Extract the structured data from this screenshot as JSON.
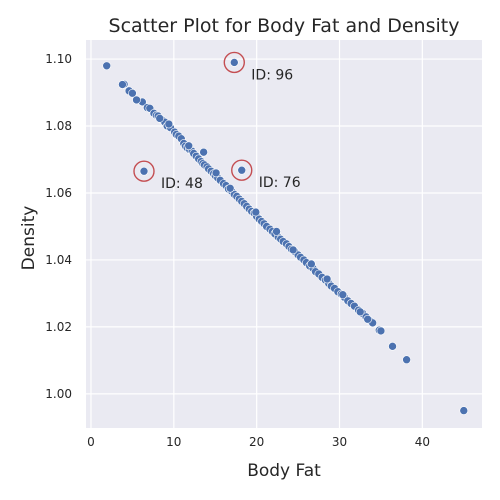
{
  "chart_data": {
    "type": "scatter",
    "title": "Scatter Plot for Body Fat and Density",
    "xlabel": "Body Fat",
    "ylabel": "Density",
    "xlim": [
      -0.6,
      47.2
    ],
    "ylim": [
      0.9898,
      1.1057
    ],
    "xticks": [
      0,
      10,
      20,
      30,
      40
    ],
    "xtick_labels": [
      "0",
      "10",
      "20",
      "30",
      "40"
    ],
    "yticks": [
      1.0,
      1.02,
      1.04,
      1.06,
      1.08,
      1.1
    ],
    "ytick_labels": [
      "1.00",
      "1.02",
      "1.04",
      "1.06",
      "1.08",
      "1.10"
    ],
    "grid": true,
    "colors": {
      "points": "#4c72b0",
      "highlight_ring": "#c44e52",
      "background": "#eaeaf2"
    },
    "points": [
      [
        1.9,
        1.098
      ],
      [
        4.0,
        1.0925
      ],
      [
        4.6,
        1.0905
      ],
      [
        5.0,
        1.0898
      ],
      [
        6.2,
        1.0872
      ],
      [
        6.8,
        1.0855
      ],
      [
        7.1,
        1.0853
      ],
      [
        7.6,
        1.0838
      ],
      [
        7.9,
        1.0832
      ],
      [
        8.1,
        1.083
      ],
      [
        8.5,
        1.082
      ],
      [
        8.9,
        1.0812
      ],
      [
        9.2,
        1.08
      ],
      [
        9.6,
        1.0795
      ],
      [
        10.1,
        1.0782
      ],
      [
        10.3,
        1.0775
      ],
      [
        10.6,
        1.077
      ],
      [
        10.9,
        1.0762
      ],
      [
        11.2,
        1.0748
      ],
      [
        11.4,
        1.074
      ],
      [
        11.6,
        1.0735
      ],
      [
        11.9,
        1.073
      ],
      [
        12.2,
        1.0725
      ],
      [
        12.4,
        1.0718
      ],
      [
        12.7,
        1.071
      ],
      [
        13.0,
        1.0702
      ],
      [
        13.3,
        1.0694
      ],
      [
        13.5,
        1.0688
      ],
      [
        13.7,
        1.0684
      ],
      [
        14.0,
        1.0678
      ],
      [
        14.2,
        1.0672
      ],
      [
        14.5,
        1.0665
      ],
      [
        14.8,
        1.0658
      ],
      [
        15.0,
        1.0652
      ],
      [
        15.3,
        1.0645
      ],
      [
        15.6,
        1.0638
      ],
      [
        16.0,
        1.0628
      ],
      [
        16.3,
        1.0622
      ],
      [
        16.6,
        1.0612
      ],
      [
        17.0,
        1.0605
      ],
      [
        17.3,
        1.0596
      ],
      [
        17.6,
        1.059
      ],
      [
        17.9,
        1.0582
      ],
      [
        18.2,
        1.0575
      ],
      [
        18.5,
        1.0568
      ],
      [
        18.8,
        1.056
      ],
      [
        19.1,
        1.0552
      ],
      [
        19.4,
        1.0545
      ],
      [
        19.7,
        1.054
      ],
      [
        20.0,
        1.053
      ],
      [
        20.3,
        1.0522
      ],
      [
        20.6,
        1.0515
      ],
      [
        20.9,
        1.0508
      ],
      [
        21.2,
        1.05
      ],
      [
        21.6,
        1.0492
      ],
      [
        21.9,
        1.0485
      ],
      [
        22.2,
        1.0478
      ],
      [
        22.6,
        1.0468
      ],
      [
        22.9,
        1.0462
      ],
      [
        23.2,
        1.0455
      ],
      [
        23.6,
        1.0448
      ],
      [
        23.9,
        1.044
      ],
      [
        24.2,
        1.0432
      ],
      [
        24.6,
        1.0425
      ],
      [
        25.0,
        1.0415
      ],
      [
        25.3,
        1.0408
      ],
      [
        25.7,
        1.04
      ],
      [
        26.0,
        1.0392
      ],
      [
        26.4,
        1.0382
      ],
      [
        26.8,
        1.0375
      ],
      [
        27.1,
        1.0365
      ],
      [
        27.5,
        1.0358
      ],
      [
        27.9,
        1.0348
      ],
      [
        28.3,
        1.034
      ],
      [
        28.7,
        1.033
      ],
      [
        29.0,
        1.0322
      ],
      [
        29.4,
        1.0315
      ],
      [
        29.8,
        1.0305
      ],
      [
        30.2,
        1.0298
      ],
      [
        30.6,
        1.0288
      ],
      [
        31.0,
        1.0278
      ],
      [
        31.4,
        1.027
      ],
      [
        31.8,
        1.0262
      ],
      [
        32.3,
        1.025
      ],
      [
        32.8,
        1.024
      ],
      [
        33.2,
        1.023
      ],
      [
        33.6,
        1.022
      ],
      [
        34.0,
        1.0212
      ],
      [
        34.8,
        1.019
      ],
      [
        36.4,
        1.0142
      ],
      [
        38.1,
        1.0102
      ],
      [
        45.0,
        0.995
      ],
      [
        6.4,
        1.0665
      ],
      [
        18.2,
        1.0668
      ],
      [
        17.3,
        1.099
      ],
      [
        3.8,
        1.0924
      ],
      [
        5.5,
        1.0878
      ],
      [
        8.3,
        1.0823
      ],
      [
        9.4,
        1.0806
      ],
      [
        11.8,
        1.0741
      ],
      [
        13.6,
        1.0722
      ],
      [
        15.1,
        1.066
      ],
      [
        16.8,
        1.0614
      ],
      [
        19.9,
        1.0543
      ],
      [
        22.4,
        1.0485
      ],
      [
        24.4,
        1.043
      ],
      [
        26.6,
        1.0388
      ],
      [
        28.5,
        1.0343
      ],
      [
        30.4,
        1.0296
      ],
      [
        32.5,
        1.0245
      ],
      [
        33.4,
        1.0223
      ],
      [
        35.0,
        1.0188
      ]
    ],
    "highlighted": [
      {
        "x": 17.3,
        "y": 1.099,
        "label": "ID: 96"
      },
      {
        "x": 6.4,
        "y": 1.0665,
        "label": "ID: 48"
      },
      {
        "x": 18.2,
        "y": 1.0668,
        "label": "ID: 76"
      }
    ]
  }
}
